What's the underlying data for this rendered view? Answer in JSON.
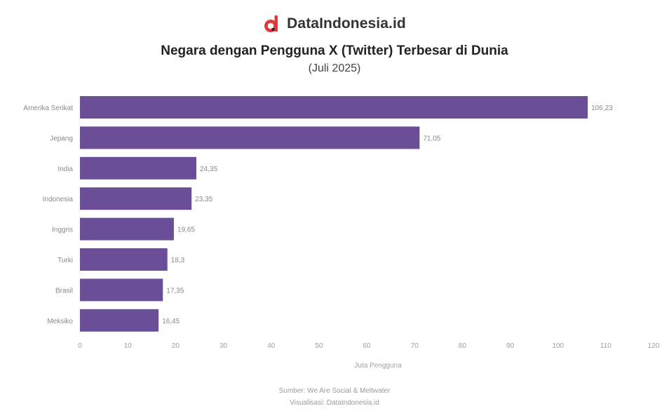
{
  "brand": {
    "name": "DataIndonesia.id",
    "logo_color": "#e03a3e"
  },
  "title": "Negara dengan Pengguna X (Twitter) Terbesar di Dunia",
  "subtitle": "(Juli 2025)",
  "chart_data": {
    "type": "bar",
    "orientation": "horizontal",
    "categories": [
      "Amerika Serikat",
      "Jepang",
      "India",
      "Indonesia",
      "Inggris",
      "Turki",
      "Brasil",
      "Meksiko"
    ],
    "values": [
      106.23,
      71.05,
      24.35,
      23.35,
      19.65,
      18.3,
      17.35,
      16.45
    ],
    "value_labels": [
      "106,23",
      "71,05",
      "24,35",
      "23,35",
      "19,65",
      "18,3",
      "17,35",
      "16,45"
    ],
    "xlim": [
      0,
      120
    ],
    "xticks": [
      0,
      10,
      20,
      30,
      40,
      50,
      60,
      70,
      80,
      90,
      100,
      110,
      120
    ],
    "xlabel": "Juta Pengguna",
    "bar_color": "#6a4f98",
    "grid": false
  },
  "source": {
    "line1": "Sumber: We Are Social & Meltwater",
    "line2": "Visualisasi: DataIndonesia.id"
  }
}
